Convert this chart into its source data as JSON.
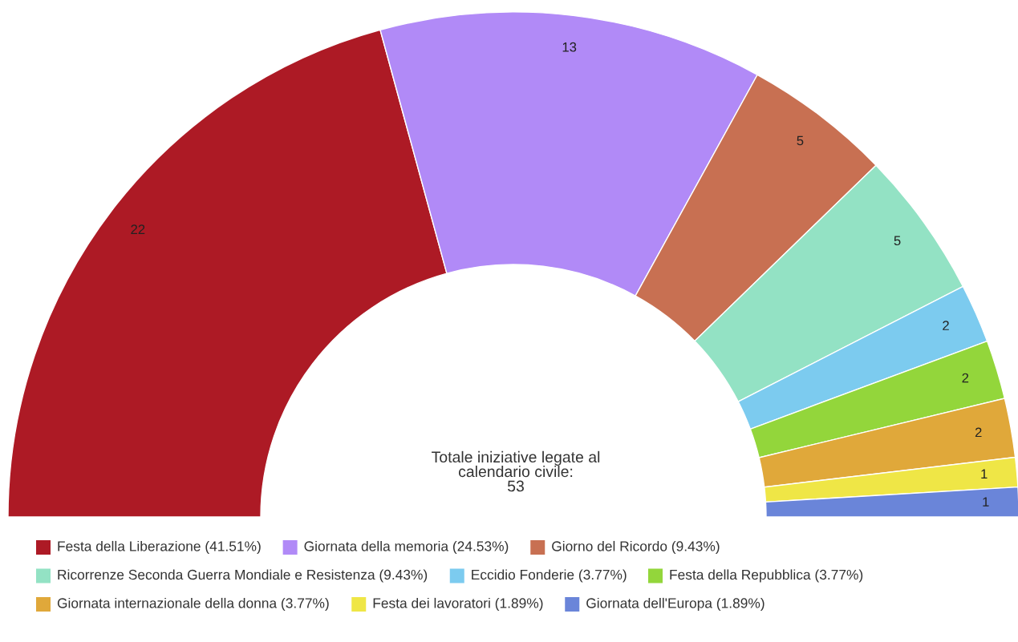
{
  "chart_data": {
    "type": "donut",
    "categories": [
      "Festa della Liberazione (41.51%)",
      "Giornata della memoria (24.53%)",
      "Giorno del Ricordo (9.43%)",
      "Ricorrenze Seconda Guerra Mondiale e Resistenza (9.43%)",
      "Eccidio Fonderie (3.77%)",
      "Festa della Repubblica (3.77%)",
      "Giornata internazionale della donna (3.77%)",
      "Festa dei lavoratori (1.89%)",
      "Giornata dell'Europa (1.89%)"
    ],
    "values": [
      22,
      13,
      5,
      5,
      2,
      2,
      2,
      1,
      1
    ],
    "colors": [
      "#ad1a25",
      "#b18af7",
      "#c87052",
      "#93e2c4",
      "#7ccbef",
      "#93d63b",
      "#e0a83a",
      "#efe646",
      "#6a85d9"
    ],
    "data_labels": true,
    "legend": "bottom",
    "annotations": [
      "Totale iniziative legate al\ncalendario civile:\n53"
    ]
  }
}
